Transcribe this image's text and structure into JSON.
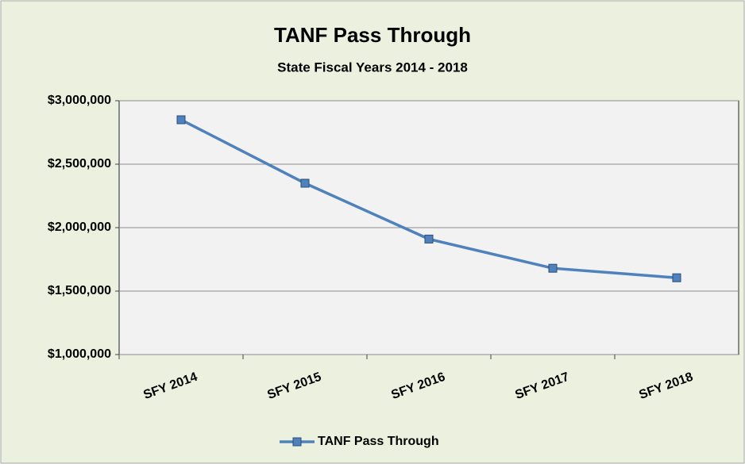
{
  "chart_data": {
    "type": "line",
    "title": "TANF Pass Through",
    "subtitle": "State Fiscal Years 2014 - 2018",
    "categories": [
      "SFY 2014",
      "SFY 2015",
      "SFY 2016",
      "SFY 2017",
      "SFY 2018"
    ],
    "series": [
      {
        "name": "TANF Pass Through",
        "color": "#4f81bd",
        "values": [
          2850000,
          2350000,
          1910000,
          1680000,
          1605000
        ]
      }
    ],
    "ylim": [
      1000000,
      3000000
    ],
    "yticks": [
      {
        "value": 1000000,
        "label": "$1,000,000"
      },
      {
        "value": 1500000,
        "label": "$1,500,000"
      },
      {
        "value": 2000000,
        "label": "$2,000,000"
      },
      {
        "value": 2500000,
        "label": "$2,500,000"
      },
      {
        "value": 3000000,
        "label": "$3,000,000"
      }
    ],
    "grid": true,
    "legend": "bottom"
  }
}
